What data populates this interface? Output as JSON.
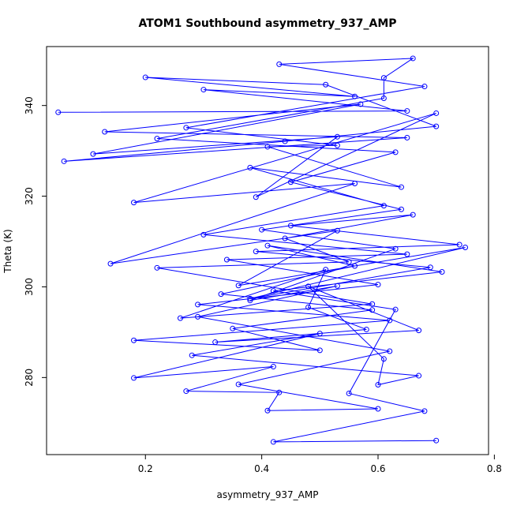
{
  "chart_data": {
    "type": "line",
    "title": "ATOM1 Southbound asymmetry_937_AMP",
    "xlabel": "asymmetry_937_AMP",
    "ylabel": "Theta (K)",
    "xlim": [
      0.03,
      0.79
    ],
    "ylim": [
      263,
      353
    ],
    "xticks": [
      0.2,
      0.4,
      0.6,
      0.8
    ],
    "yticks": [
      280,
      300,
      320,
      340
    ],
    "x_tick_labels": [
      "0.2",
      "0.4",
      "0.6",
      "0.8"
    ],
    "y_tick_labels": [
      "280",
      "300",
      "320",
      "340"
    ],
    "grid": false,
    "legend": "none",
    "series_color": "#0000ff",
    "marker": "open-circle",
    "series": [
      {
        "x": [
          0.05,
          0.65,
          0.3,
          0.56,
          0.2,
          0.51,
          0.7,
          0.44,
          0.06,
          0.65,
          0.13,
          0.57,
          0.11,
          0.53,
          0.39,
          0.7,
          0.18,
          0.56,
          0.14,
          0.53,
          0.36,
          0.75,
          0.38,
          0.69,
          0.39,
          0.74,
          0.45,
          0.66,
          0.44,
          0.55,
          0.22,
          0.59,
          0.26,
          0.51,
          0.48,
          0.58,
          0.32,
          0.67,
          0.48,
          0.61,
          0.6,
          0.67,
          0.28,
          0.5,
          0.18,
          0.42,
          0.27,
          0.43,
          0.41,
          0.6,
          0.36,
          0.62,
          0.29,
          0.53,
          0.38,
          0.63,
          0.4,
          0.64,
          0.45,
          0.63,
          0.22,
          0.61,
          0.61,
          0.66,
          0.43,
          0.68,
          0.27,
          0.53,
          0.41,
          0.64,
          0.38,
          0.61,
          0.3,
          0.65,
          0.34,
          0.6,
          0.29,
          0.62,
          0.18,
          0.5,
          0.35,
          0.59,
          0.33,
          0.56,
          0.41,
          0.71,
          0.42,
          0.63,
          0.55,
          0.68,
          0.42,
          0.7
        ],
        "y": [
          338.5,
          338.8,
          343.5,
          342.0,
          346.2,
          344.6,
          335.4,
          332.1,
          327.7,
          332.9,
          334.2,
          340.3,
          329.3,
          333.1,
          319.8,
          338.3,
          318.6,
          322.8,
          305.1,
          312.4,
          300.3,
          308.7,
          297.4,
          304.3,
          307.8,
          309.3,
          313.5,
          315.9,
          310.7,
          305.5,
          304.2,
          296.2,
          293.1,
          303.8,
          295.5,
          290.6,
          287.8,
          290.4,
          300.1,
          284.1,
          278.4,
          280.4,
          284.9,
          289.7,
          279.9,
          282.4,
          277.0,
          276.7,
          272.7,
          273.1,
          278.5,
          285.8,
          293.4,
          300.2,
          297.0,
          308.4,
          312.6,
          317.1,
          323.1,
          329.7,
          332.7,
          341.6,
          346.1,
          350.4,
          349.1,
          344.2,
          335.1,
          331.2,
          330.9,
          322.0,
          326.3,
          317.9,
          311.5,
          307.2,
          306.0,
          300.5,
          296.1,
          292.6,
          288.2,
          286.0,
          290.8,
          294.9,
          298.4,
          304.6,
          309.1,
          303.3,
          299.1,
          295.0,
          276.5,
          272.6,
          265.8,
          266.1
        ]
      }
    ]
  }
}
